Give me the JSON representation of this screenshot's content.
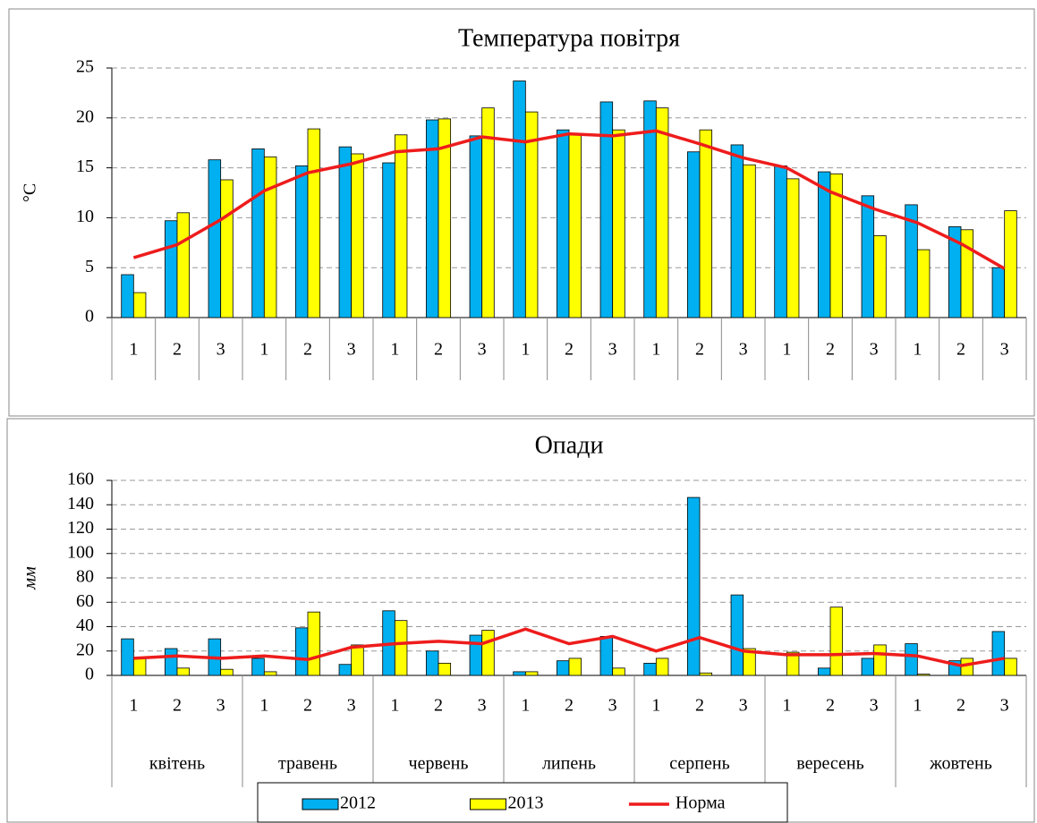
{
  "chart_data": [
    {
      "type": "bar",
      "title": "Температура повітря",
      "y_label": "°C",
      "categories": [
        "1",
        "2",
        "3",
        "1",
        "2",
        "3",
        "1",
        "2",
        "3",
        "1",
        "2",
        "3",
        "1",
        "2",
        "3",
        "1",
        "2",
        "3",
        "1",
        "2",
        "3"
      ],
      "series": [
        {
          "color": "#00b0f0",
          "values": [
            4.3,
            9.7,
            15.8,
            16.9,
            15.2,
            17.1,
            15.5,
            19.8,
            18.2,
            23.7,
            18.8,
            21.6,
            21.7,
            16.6,
            17.3,
            15.2,
            14.6,
            12.2,
            11.3,
            9.1,
            5.0
          ]
        },
        {
          "color": "#ffff00",
          "values": [
            2.5,
            10.5,
            13.8,
            16.1,
            18.9,
            16.4,
            18.3,
            19.9,
            21.0,
            20.6,
            18.4,
            18.8,
            21.0,
            18.8,
            15.3,
            13.9,
            14.4,
            8.2,
            6.8,
            8.8,
            10.7
          ]
        },
        {
          "type": "line",
          "color": "#ee1c1c",
          "values": [
            6.0,
            7.3,
            9.8,
            12.7,
            14.5,
            15.4,
            16.6,
            16.9,
            18.1,
            17.6,
            18.4,
            18.2,
            18.7,
            17.4,
            16.0,
            15.0,
            12.6,
            10.9,
            9.5,
            7.4,
            4.9
          ]
        }
      ],
      "ylim": [
        0,
        25
      ],
      "yticks": [
        0,
        5,
        10,
        15,
        20,
        25
      ],
      "grid": true
    },
    {
      "type": "bar",
      "title": "Опади",
      "y_label": "мм",
      "categories": [
        "1",
        "2",
        "3",
        "1",
        "2",
        "3",
        "1",
        "2",
        "3",
        "1",
        "2",
        "3",
        "1",
        "2",
        "3",
        "1",
        "2",
        "3",
        "1",
        "2",
        "3"
      ],
      "groups": [
        "квітень",
        "травень",
        "червень",
        "липень",
        "серпень",
        "вересень",
        "жовтень"
      ],
      "series": [
        {
          "name": "2012",
          "color": "#00b0f0",
          "values": [
            30,
            22,
            30,
            14,
            39,
            9,
            53,
            20,
            33,
            3,
            12,
            32,
            10,
            146,
            66,
            0,
            6,
            14,
            26,
            12,
            36
          ]
        },
        {
          "name": "2013",
          "color": "#ffff00",
          "values": [
            14,
            6,
            5,
            3,
            52,
            25,
            45,
            10,
            37,
            3,
            14,
            6,
            14,
            2,
            22,
            19,
            56,
            25,
            1,
            14,
            14
          ]
        },
        {
          "name": "Норма",
          "type": "line",
          "color": "#ee1c1c",
          "values": [
            14,
            16,
            14,
            16,
            13,
            23,
            26,
            28,
            26,
            38,
            26,
            32,
            20,
            31,
            20,
            17,
            17,
            18,
            16,
            8,
            14
          ]
        }
      ],
      "ylim": [
        0,
        160
      ],
      "yticks": [
        0,
        20,
        40,
        60,
        80,
        100,
        120,
        140,
        160
      ],
      "grid": true,
      "legend": "bottom"
    }
  ]
}
